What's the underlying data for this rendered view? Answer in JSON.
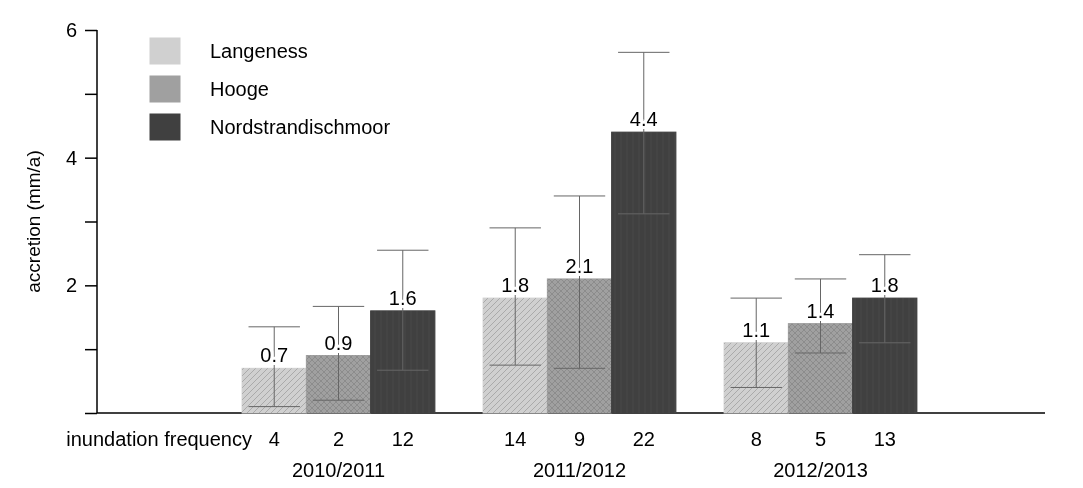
{
  "chart_data": {
    "type": "bar",
    "ylabel": "accretion (mm/a)",
    "categories": [
      "2010/2011",
      "2011/2012",
      "2012/2013"
    ],
    "series": [
      {
        "name": "Langeness",
        "color": "#d0d0d0",
        "values": [
          0.7,
          1.8,
          1.1
        ],
        "errors": [
          [
            0.1,
            1.35
          ],
          [
            0.75,
            2.9
          ],
          [
            0.4,
            1.8
          ]
        ]
      },
      {
        "name": "Hooge",
        "color": "#a0a0a0",
        "values": [
          0.9,
          2.1,
          1.4
        ],
        "errors": [
          [
            0.2,
            1.67
          ],
          [
            0.7,
            3.4
          ],
          [
            0.94,
            2.1
          ]
        ]
      },
      {
        "name": "Nordstrandischmoor",
        "color": "#404040",
        "values": [
          1.6,
          4.4,
          1.8
        ],
        "errors": [
          [
            0.67,
            2.55
          ],
          [
            3.12,
            5.65
          ],
          [
            1.1,
            2.48
          ]
        ]
      }
    ],
    "ylim": [
      0,
      6
    ],
    "yticks": [
      {
        "value": 0,
        "label": null
      },
      {
        "value": 1,
        "label": null
      },
      2,
      {
        "value": 3,
        "label": null
      },
      4,
      {
        "value": 5,
        "label": null
      },
      6
    ],
    "data_labels": true,
    "legend": "top left",
    "annotations": [
      "inundation frequency",
      "4",
      "2",
      "12",
      "14",
      "9",
      "22",
      "8",
      "5",
      "13"
    ]
  }
}
